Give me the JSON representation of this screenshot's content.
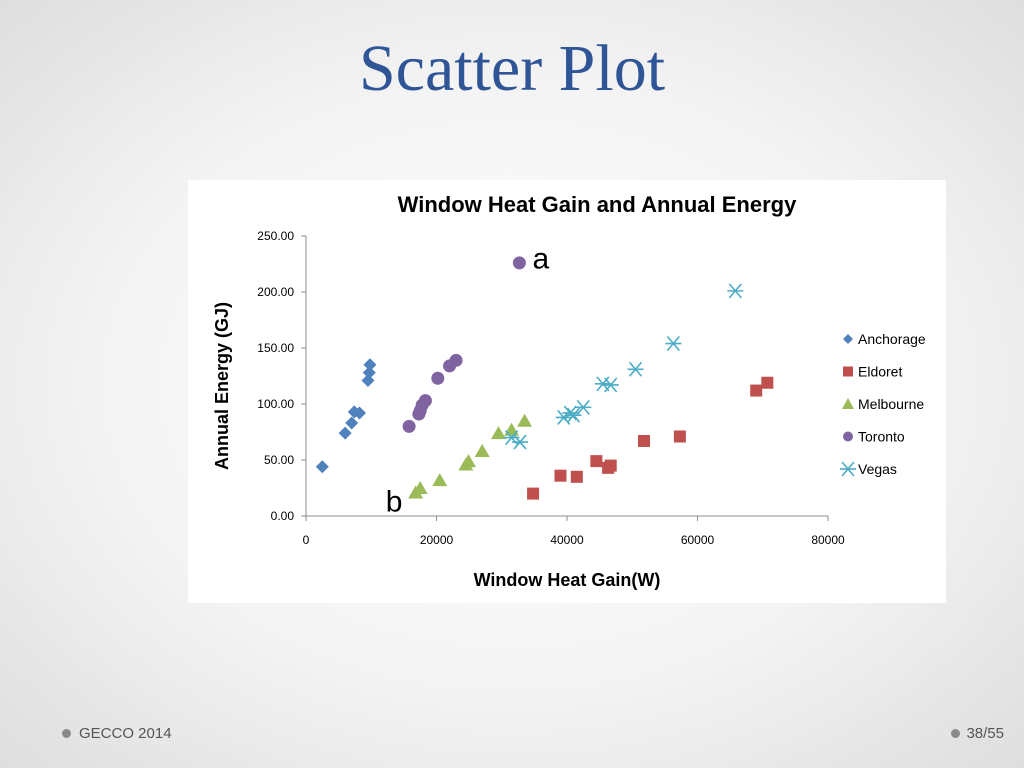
{
  "slide": {
    "title": "Scatter Plot",
    "footer_left": "GECCO 2014",
    "footer_right": "38/55"
  },
  "chart_data": {
    "type": "scatter",
    "title": "Window Heat Gain and Annual Energy",
    "xlabel": "Window Heat Gain(W)",
    "ylabel": "Annual Energy (GJ)",
    "xlim": [
      0,
      80000
    ],
    "ylim": [
      0,
      250
    ],
    "xticks": [
      "0",
      "20000",
      "40000",
      "60000",
      "80000"
    ],
    "yticks": [
      "0.00",
      "50.00",
      "100.00",
      "150.00",
      "200.00",
      "250.00"
    ],
    "grid": false,
    "legend_position": "right",
    "series": [
      {
        "name": "Anchorage",
        "marker": "diamond",
        "color": "#4f81bd",
        "points": [
          [
            2500,
            44
          ],
          [
            6000,
            74
          ],
          [
            7000,
            83
          ],
          [
            7400,
            93
          ],
          [
            8200,
            92
          ],
          [
            9500,
            121
          ],
          [
            9700,
            128
          ],
          [
            9800,
            135
          ]
        ]
      },
      {
        "name": "Eldoret",
        "marker": "square",
        "color": "#c0504d",
        "points": [
          [
            34800,
            20
          ],
          [
            39000,
            36
          ],
          [
            41500,
            35
          ],
          [
            44500,
            49
          ],
          [
            46300,
            43
          ],
          [
            46700,
            45
          ],
          [
            51800,
            67
          ],
          [
            57300,
            71
          ],
          [
            69000,
            112
          ],
          [
            70700,
            119
          ]
        ]
      },
      {
        "name": "Melbourne",
        "marker": "triangle",
        "color": "#9bbb59",
        "points": [
          [
            16800,
            21
          ],
          [
            17500,
            25
          ],
          [
            20500,
            32
          ],
          [
            24500,
            46
          ],
          [
            24900,
            49
          ],
          [
            27000,
            58
          ],
          [
            29500,
            74
          ],
          [
            31500,
            77
          ],
          [
            33500,
            85
          ]
        ]
      },
      {
        "name": "Toronto",
        "marker": "circle",
        "color": "#8064a2",
        "points": [
          [
            15800,
            80
          ],
          [
            17300,
            91
          ],
          [
            17500,
            94
          ],
          [
            17800,
            99
          ],
          [
            18300,
            103
          ],
          [
            20200,
            123
          ],
          [
            22000,
            134
          ],
          [
            23000,
            139
          ],
          [
            32700,
            226
          ]
        ]
      },
      {
        "name": "Vegas",
        "marker": "star",
        "color": "#4bacc6",
        "points": [
          [
            31500,
            70
          ],
          [
            32800,
            66
          ],
          [
            39500,
            88
          ],
          [
            40500,
            92
          ],
          [
            41000,
            90
          ],
          [
            42500,
            97
          ],
          [
            45500,
            118
          ],
          [
            46700,
            117
          ],
          [
            50500,
            131
          ],
          [
            56300,
            154
          ],
          [
            65800,
            201
          ]
        ]
      }
    ],
    "annotations": [
      {
        "text": "a",
        "x": 36000,
        "y": 230
      },
      {
        "text": "b",
        "x": 13500,
        "y": 13
      }
    ]
  }
}
